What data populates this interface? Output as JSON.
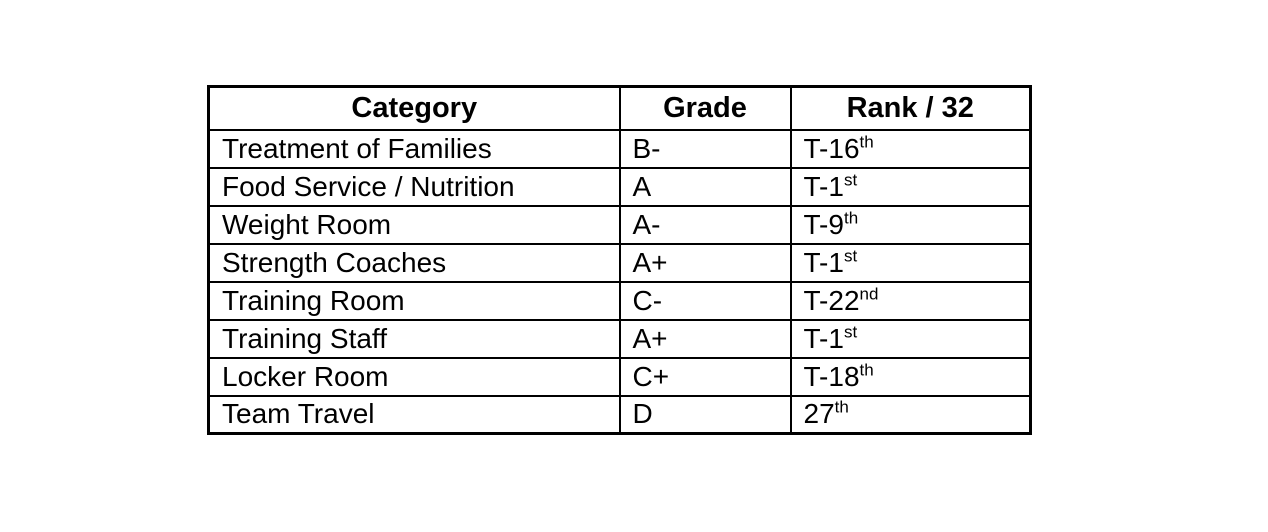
{
  "table": {
    "headers": {
      "category": "Category",
      "grade": "Grade",
      "rank": "Rank / 32"
    },
    "rows": [
      {
        "category": "Treatment of Families",
        "grade": "B-",
        "rank": "T-16",
        "rank_suffix": "th"
      },
      {
        "category": "Food Service / Nutrition",
        "grade": "A",
        "rank": "T-1",
        "rank_suffix": "st"
      },
      {
        "category": "Weight Room",
        "grade": "A-",
        "rank": "T-9",
        "rank_suffix": "th"
      },
      {
        "category": "Strength Coaches",
        "grade": "A+",
        "rank": "T-1",
        "rank_suffix": "st"
      },
      {
        "category": "Training Room",
        "grade": "C-",
        "rank": "T-22",
        "rank_suffix": "nd"
      },
      {
        "category": "Training Staff",
        "grade": "A+",
        "rank": "T-1",
        "rank_suffix": "st"
      },
      {
        "category": "Locker Room",
        "grade": "C+",
        "rank": "T-18",
        "rank_suffix": "th"
      },
      {
        "category": "Team Travel",
        "grade": "D",
        "rank": "27",
        "rank_suffix": "th"
      }
    ],
    "colors": {
      "border": "#000000",
      "text": "#000000",
      "background": "#ffffff"
    }
  }
}
